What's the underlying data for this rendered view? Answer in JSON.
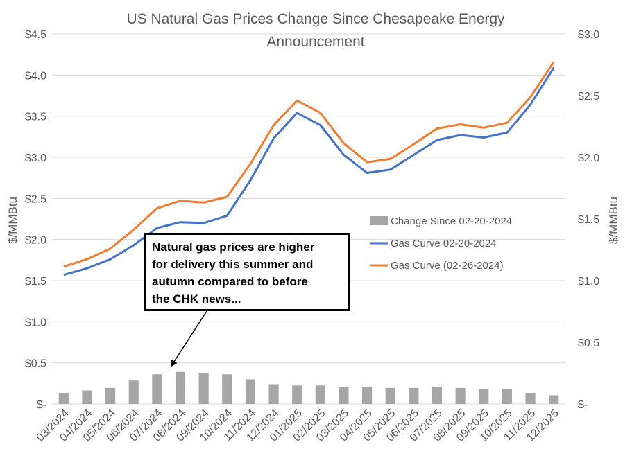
{
  "chart_data": {
    "type": "bar+line",
    "title_lines": [
      "US Natural Gas Prices Change Since Chesapeake Energy",
      "Announcement"
    ],
    "categories": [
      "03/2024",
      "04/2024",
      "05/2024",
      "06/2024",
      "07/2024",
      "08/2024",
      "09/2024",
      "10/2024",
      "11/2024",
      "12/2024",
      "01/2025",
      "02/2025",
      "03/2025",
      "04/2025",
      "05/2025",
      "06/2025",
      "07/2025",
      "08/2025",
      "09/2025",
      "10/2025",
      "11/2025",
      "12/2025"
    ],
    "left_axis": {
      "label": "$/MMBtu",
      "range": [
        0,
        4.5
      ],
      "ticks": [
        0,
        0.5,
        1.0,
        1.5,
        2.0,
        2.5,
        3.0,
        3.5,
        4.0,
        4.5
      ],
      "tick_labels": [
        "$-",
        "$0.5",
        "$1.0",
        "$1.5",
        "$2.0",
        "$2.5",
        "$3.0",
        "$3.5",
        "$4.0",
        "$4.5"
      ]
    },
    "right_axis": {
      "label": "$/MMBtu",
      "range": [
        0,
        3.0
      ],
      "ticks": [
        0,
        0.5,
        1.0,
        1.5,
        2.0,
        2.5,
        3.0
      ],
      "tick_labels": [
        "$-",
        "$0.5",
        "$1.0",
        "$1.5",
        "$2.0",
        "$2.5",
        "$3.0"
      ]
    },
    "grid": true,
    "legend_position": "right-middle",
    "series": [
      {
        "name": "Change Since 02-20-2024",
        "kind": "bar",
        "axis": "right",
        "color": "#a6a6a6",
        "values": [
          0.09,
          0.11,
          0.13,
          0.19,
          0.24,
          0.26,
          0.25,
          0.24,
          0.2,
          0.16,
          0.15,
          0.15,
          0.14,
          0.14,
          0.13,
          0.13,
          0.14,
          0.13,
          0.12,
          0.12,
          0.09,
          0.07
        ]
      },
      {
        "name": "Gas Curve 02-20-2024",
        "kind": "line",
        "axis": "left",
        "color": "#4472c4",
        "values": [
          1.57,
          1.65,
          1.76,
          1.93,
          2.14,
          2.21,
          2.2,
          2.29,
          2.72,
          3.23,
          3.54,
          3.39,
          3.03,
          2.81,
          2.85,
          3.03,
          3.21,
          3.27,
          3.24,
          3.3,
          3.64,
          4.09
        ]
      },
      {
        "name": "Gas Curve (02-26-2024)",
        "kind": "line",
        "axis": "left",
        "color": "#ed7d31",
        "values": [
          1.67,
          1.76,
          1.89,
          2.12,
          2.38,
          2.47,
          2.45,
          2.52,
          2.92,
          3.39,
          3.69,
          3.54,
          3.17,
          2.94,
          2.98,
          3.16,
          3.35,
          3.4,
          3.36,
          3.42,
          3.73,
          4.16
        ]
      }
    ],
    "annotation": {
      "lines": [
        "Natural gas prices are higher",
        "for delivery this summer and",
        "autumn compared to before",
        "the CHK news..."
      ],
      "arrow_target_category": "07/2024"
    }
  }
}
